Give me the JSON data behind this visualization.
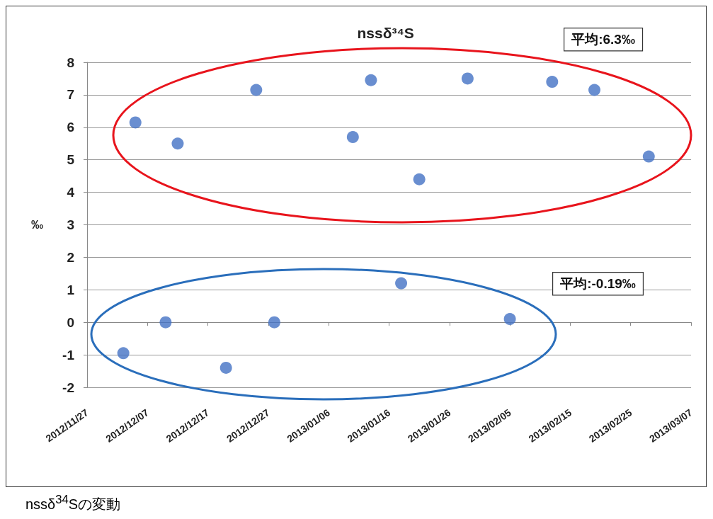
{
  "chart_data": {
    "type": "scatter",
    "title": "nssδ³⁴S",
    "ylabel": "‰",
    "x": [
      "2012-12-03",
      "2012-12-05",
      "2012-12-10",
      "2012-12-12",
      "2012-12-20",
      "2012-12-25",
      "2012-12-28",
      "2013-01-10",
      "2013-01-13",
      "2013-01-18",
      "2013-01-21",
      "2013-01-29",
      "2013-02-05",
      "2013-02-12",
      "2013-02-19",
      "2013-02-28"
    ],
    "values": [
      -0.95,
      6.15,
      0,
      5.5,
      -1.4,
      7.15,
      0,
      5.7,
      7.45,
      1.2,
      4.4,
      7.5,
      0.1,
      7.4,
      7.15,
      5.1
    ],
    "color": "#4472c4",
    "marker": "circle",
    "xlim": [
      "2012-11-27",
      "2013-03-07"
    ],
    "xticks": [
      {
        "value": "2012-11-27",
        "label": "2012/11/27"
      },
      {
        "value": "2012-12-07",
        "label": "2012/12/07"
      },
      {
        "value": "2012-12-17",
        "label": "2012/12/17"
      },
      {
        "value": "2012-12-27",
        "label": "2012/12/27"
      },
      {
        "value": "2013-01-06",
        "label": "2013/01/06"
      },
      {
        "value": "2013-01-16",
        "label": "2013/01/16"
      },
      {
        "value": "2013-01-26",
        "label": "2013/01/26"
      },
      {
        "value": "2013-02-05",
        "label": "2013/02/05"
      },
      {
        "value": "2013-02-15",
        "label": "2013/02/15"
      },
      {
        "value": "2013-02-25",
        "label": "2013/02/25"
      },
      {
        "value": "2013-03-07",
        "label": "2013/03/07"
      }
    ],
    "ylim": [
      -2,
      8
    ],
    "yticks": [
      -2,
      -1,
      0,
      1,
      2,
      3,
      4,
      5,
      6,
      7,
      8
    ],
    "grid": "y",
    "annotations": [
      "平均:6.3‰",
      "平均:-0.19‰",
      "nssδ$^{34}$Sの変動"
    ]
  }
}
